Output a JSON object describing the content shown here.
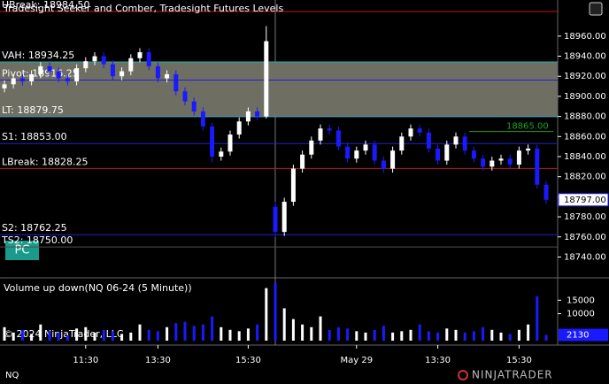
{
  "chart_data": [
    {
      "type": "candlestick",
      "title": "Tradesight Seeker and Comber, Tradesight Futures Levels",
      "up_color": "#ffffff",
      "down_color": "#1a1aff",
      "open": [
        18908,
        18912,
        18918,
        18915,
        18922,
        18930,
        18925,
        18918,
        18915,
        18928,
        18935,
        18940,
        18932,
        18920,
        18925,
        18938,
        18944,
        18930,
        18918,
        18922,
        18905,
        18895,
        18885,
        18870,
        18840,
        18845,
        18862,
        18875,
        18885,
        18880,
        18790,
        18765,
        18795,
        18828,
        18842,
        18856,
        18868,
        18866,
        18850,
        18838,
        18846,
        18852,
        18836,
        18828,
        18846,
        18860,
        18868,
        18864,
        18848,
        18836,
        18852,
        18860,
        18846,
        18838,
        18830,
        18836,
        18838,
        18832,
        18846,
        18848,
        18812
      ],
      "high": [
        18916,
        18922,
        18922,
        18926,
        18934,
        18934,
        18929,
        18922,
        18932,
        18939,
        18944,
        18944,
        18936,
        18929,
        18942,
        18948,
        18948,
        18934,
        18926,
        18926,
        18909,
        18899,
        18889,
        18874,
        18849,
        18866,
        18879,
        18889,
        18889,
        18970,
        18795,
        18799,
        18832,
        18846,
        18860,
        18872,
        18872,
        18870,
        18854,
        18850,
        18856,
        18856,
        18840,
        18850,
        18864,
        18872,
        18872,
        18868,
        18852,
        18856,
        18864,
        18864,
        18850,
        18842,
        18840,
        18842,
        18842,
        18850,
        18852,
        18852,
        18816
      ],
      "low": [
        18904,
        18908,
        18911,
        18911,
        18918,
        18921,
        18914,
        18911,
        18911,
        18924,
        18931,
        18928,
        18916,
        18916,
        18921,
        18934,
        18926,
        18914,
        18914,
        18901,
        18891,
        18881,
        18866,
        18834,
        18836,
        18841,
        18858,
        18871,
        18876,
        18878,
        18760,
        18761,
        18791,
        18824,
        18838,
        18852,
        18862,
        18846,
        18834,
        18834,
        18842,
        18832,
        18824,
        18824,
        18842,
        18856,
        18860,
        18844,
        18832,
        18832,
        18848,
        18842,
        18834,
        18826,
        18826,
        18832,
        18828,
        18828,
        18842,
        18808,
        18793
      ],
      "close": [
        18912,
        18918,
        18915,
        18922,
        18930,
        18925,
        18918,
        18915,
        18928,
        18935,
        18940,
        18932,
        18920,
        18925,
        18938,
        18944,
        18930,
        18918,
        18922,
        18905,
        18895,
        18885,
        18870,
        18840,
        18845,
        18862,
        18875,
        18885,
        18880,
        18955,
        18765,
        18795,
        18828,
        18842,
        18856,
        18868,
        18866,
        18850,
        18838,
        18846,
        18852,
        18836,
        18828,
        18846,
        18860,
        18868,
        18864,
        18848,
        18836,
        18852,
        18860,
        18846,
        18838,
        18830,
        18836,
        18838,
        18832,
        18846,
        18848,
        18812,
        18797
      ],
      "ylim": [
        18721,
        18996
      ],
      "yticks": [
        {
          "value": 18960,
          "label": "18960.00"
        },
        {
          "value": 18940,
          "label": "18940.00"
        },
        {
          "value": 18920,
          "label": "18920.00"
        },
        {
          "value": 18900,
          "label": "18900.00"
        },
        {
          "value": 18880,
          "label": "18880.00"
        },
        {
          "value": 18860,
          "label": "18860.00"
        },
        {
          "value": 18840,
          "label": "18840.00"
        },
        {
          "value": 18820,
          "label": "18820.00"
        },
        {
          "value": 18800,
          "label": "18800.00"
        },
        {
          "value": 18780,
          "label": "18780.00"
        },
        {
          "value": 18760,
          "label": "18760.00"
        },
        {
          "value": 18740,
          "label": "18740.00"
        }
      ],
      "xticks": [
        {
          "value": 9,
          "label": "11:30"
        },
        {
          "value": 17,
          "label": "13:30"
        },
        {
          "value": 27,
          "label": "15:30"
        },
        {
          "value": 39,
          "label": "May 29"
        },
        {
          "value": 48,
          "label": "13:30"
        },
        {
          "value": 57,
          "label": "15:30"
        }
      ],
      "levels": [
        {
          "label": "UBreak: 18984.50",
          "value": 18984.5,
          "color": "#d01010"
        },
        {
          "label": "VAH: 18934.25",
          "value": 18934.25,
          "color": "#20b0b0"
        },
        {
          "label": "Pivot: 18916.25",
          "value": 18916.25,
          "color": "#2020d0"
        },
        {
          "label": "LT: 18879.75",
          "value": 18879.75,
          "color": "#40a0d0"
        },
        {
          "label": "S1: 18853.00",
          "value": 18853,
          "color": "#2020d0"
        },
        {
          "label": "LBreak: 18828.25",
          "value": 18828.25,
          "color": "#c01818"
        },
        {
          "label": "S2: 18762.25",
          "value": 18762.25,
          "color": "#2020d0"
        },
        {
          "label": "TS2: 18750.00",
          "value": 18750,
          "color": "#505050"
        }
      ],
      "band_color": "#6e6e62",
      "target": {
        "label": "18865.00",
        "value": 18865,
        "color": "#20a020"
      },
      "last_price": {
        "value": 18797,
        "label": "18797.00"
      }
    },
    {
      "type": "bar",
      "title": "Volume up down(NQ 06-24 (5 Minute))",
      "values": [
        5000,
        3000,
        4000,
        2500,
        6000,
        3500,
        3000,
        2000,
        4500,
        5000,
        3000,
        4000,
        3500,
        2500,
        3000,
        6000,
        4000,
        3500,
        5000,
        6500,
        7000,
        5500,
        6000,
        9000,
        5000,
        4000,
        3500,
        4500,
        6000,
        19500,
        21500,
        12000,
        8000,
        6000,
        5000,
        9000,
        4000,
        5000,
        4500,
        3500,
        3000,
        4000,
        5500,
        3000,
        3500,
        4000,
        6000,
        3500,
        3000,
        4500,
        4000,
        3000,
        3500,
        5000,
        4000,
        3000,
        2500,
        4000,
        6000,
        16500,
        2130
      ],
      "ylim": [
        0,
        22000
      ],
      "yticks": [
        10000,
        15000
      ],
      "last_value": 2130
    }
  ],
  "instrument": "NQ",
  "badge": "PC",
  "copyright": "© 2024 NinjaTrader, LLC",
  "logo": "NINJATRADER"
}
